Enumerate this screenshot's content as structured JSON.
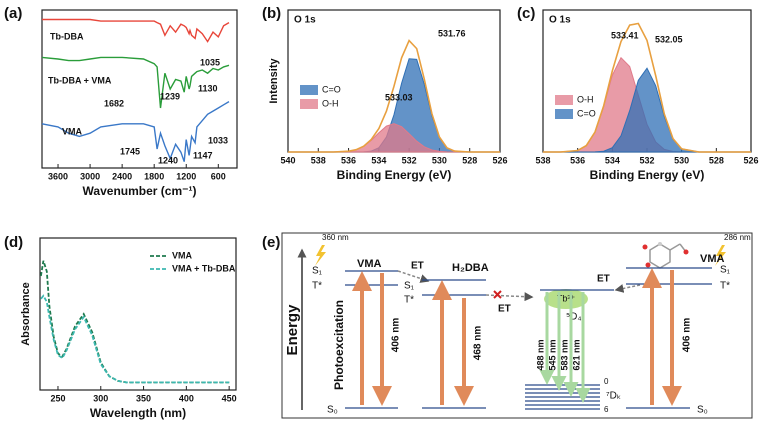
{
  "chart_data": [
    {
      "type": "line",
      "label": "(a)",
      "xlabel": "Wavenumber (cm⁻¹)",
      "xlim": [
        3900,
        250
      ],
      "ylim": [
        0,
        100
      ],
      "xticks": [
        3600,
        3000,
        2400,
        1800,
        1200,
        600
      ],
      "x": [
        3900,
        3600,
        3400,
        3200,
        3000,
        2800,
        2400,
        2000,
        1800,
        1745,
        1682,
        1600,
        1500,
        1400,
        1300,
        1239,
        1200,
        1147,
        1130,
        1100,
        1035,
        1000,
        900,
        800,
        700,
        600,
        500,
        400
      ],
      "series": [
        {
          "name": "Tb-DBA",
          "color": "#e8463a",
          "values": [
            94,
            94,
            94,
            94,
            94,
            93,
            93,
            93,
            93,
            92,
            91,
            84,
            90,
            86,
            91,
            90,
            89,
            85,
            87,
            84,
            82,
            88,
            85,
            80,
            86,
            83,
            90,
            92
          ]
        },
        {
          "name": "Tb-DBA + VMA",
          "color": "#2a9d3a",
          "values": [
            70,
            69,
            68,
            68,
            69,
            70,
            70,
            69,
            66,
            64,
            38,
            60,
            50,
            56,
            55,
            48,
            58,
            50,
            52,
            58,
            60,
            61,
            62,
            60,
            63,
            62,
            64,
            65
          ]
        },
        {
          "name": "VMA",
          "color": "#3a78c8",
          "values": [
            28,
            26,
            22,
            20,
            22,
            26,
            28,
            28,
            26,
            12,
            22,
            14,
            6,
            15,
            10,
            4,
            18,
            8,
            12,
            20,
            16,
            26,
            30,
            34,
            36,
            38,
            40,
            42
          ]
        }
      ],
      "annotations": [
        "1035",
        "1239",
        "1130",
        "1682",
        "1745",
        "1240",
        "1147",
        "1033"
      ]
    },
    {
      "type": "area",
      "label": "(b)",
      "title": "O 1s",
      "xlabel": "Binding Energy (eV)",
      "ylabel": "Intensity",
      "xlim": [
        540,
        526
      ],
      "ylim": [
        0,
        125
      ],
      "xticks": [
        540,
        538,
        536,
        534,
        532,
        530,
        528,
        526
      ],
      "x": [
        540,
        539,
        538,
        537,
        536,
        535.5,
        535,
        534.5,
        534,
        533.5,
        533,
        532.5,
        532,
        531.5,
        531,
        530.5,
        530,
        529.5,
        529,
        528,
        527,
        526
      ],
      "series": [
        {
          "name": "C=O",
          "color": "#2f6fb5",
          "values": [
            0,
            0,
            0,
            0,
            0,
            0,
            0.1,
            0.8,
            3.8,
            13.1,
            32.9,
            60.6,
            82,
            81.5,
            59.5,
            31.9,
            12.6,
            3.6,
            0.8,
            0,
            0,
            0
          ]
        },
        {
          "name": "O-H",
          "color": "#e07a8a",
          "values": [
            0,
            0,
            0,
            0,
            0.7,
            2.0,
            5.0,
            10.2,
            16.9,
            22.8,
            25,
            22.3,
            16.1,
            9.5,
            4.6,
            1.8,
            0.6,
            0.1,
            0,
            0,
            0,
            0
          ]
        }
      ],
      "envelope": {
        "color": "#e8a040",
        "values": [
          0,
          0,
          0,
          0,
          0.7,
          2.0,
          5.1,
          11.0,
          20.7,
          35.9,
          57.9,
          82.9,
          98.1,
          91.0,
          64.1,
          33.7,
          13.2,
          3.7,
          0.8,
          0,
          0,
          0
        ]
      },
      "annotations": [
        "531.76",
        "533.03"
      ]
    },
    {
      "type": "area",
      "label": "(c)",
      "title": "O 1s",
      "xlabel": "Binding Energy (eV)",
      "xlim": [
        538,
        526
      ],
      "ylim": [
        0,
        105
      ],
      "xticks": [
        538,
        536,
        534,
        532,
        530,
        528,
        526
      ],
      "x": [
        538,
        537,
        536,
        535.5,
        535,
        534.5,
        534,
        533.5,
        533,
        532.5,
        532,
        531.5,
        531,
        530.5,
        530,
        529,
        528,
        527,
        526
      ],
      "series": [
        {
          "name": "O-H",
          "color": "#e07a8a",
          "values": [
            0,
            0,
            1.1,
            4.7,
            14.7,
            33.6,
            56.7,
            69.7,
            63.2,
            42,
            20.5,
            7.4,
            1.9,
            0.4,
            0,
            0,
            0,
            0,
            0
          ]
        },
        {
          "name": "C=O",
          "color": "#2f6fb5",
          "values": [
            0,
            0,
            0,
            0,
            0.1,
            0.6,
            3.2,
            12.0,
            30.6,
            53,
            62,
            49,
            26.2,
            9.5,
            2.3,
            0,
            0,
            0,
            0
          ]
        }
      ],
      "envelope": {
        "color": "#e8a040",
        "values": [
          0,
          0,
          1.1,
          4.7,
          14.8,
          34.2,
          59.9,
          81.7,
          93.8,
          95,
          82.5,
          56.4,
          28.1,
          9.9,
          2.3,
          0,
          0,
          0,
          0
        ]
      },
      "annotations": [
        "533.41",
        "532.05"
      ]
    },
    {
      "type": "line",
      "label": "(d)",
      "xlabel": "Wavelength (nm)",
      "ylabel": "Absorbance",
      "xlim": [
        229,
        458
      ],
      "ylim": [
        0,
        100
      ],
      "xticks": [
        250,
        300,
        350,
        400,
        450
      ],
      "line_style": "dashed",
      "x": [
        230,
        233,
        237,
        240,
        245,
        250,
        255,
        260,
        270,
        280,
        290,
        300,
        310,
        320,
        330,
        350,
        400,
        450
      ],
      "series": [
        {
          "name": "VMA",
          "color": "#1e7a4e",
          "values": [
            75,
            85,
            78,
            55,
            35,
            24,
            22,
            27,
            42,
            50,
            38,
            18,
            9,
            6,
            5,
            5,
            5,
            5
          ]
        },
        {
          "name": "VMA + Tb-DBA",
          "color": "#3cb8b0",
          "values": [
            60,
            62,
            58,
            48,
            33,
            23,
            21,
            26,
            40,
            48,
            36,
            17,
            9,
            6,
            5,
            5,
            5,
            5
          ]
        }
      ]
    }
  ],
  "diagram": {
    "label": "(e)",
    "energy": "Energy",
    "photoexcitation": "Photoexcitation",
    "left": {
      "source": "360 nm",
      "name": "VMA",
      "s1": "S₁",
      "t": "T*",
      "s0": "S₀",
      "emission": "406 nm"
    },
    "et1": "ET",
    "et2": "ET",
    "et3": "ET",
    "ligand": {
      "name": "H₂DBA",
      "s1": "S₁",
      "t": "T*",
      "emission": "468 nm"
    },
    "ion": {
      "name": "Tb³⁺",
      "excited": "⁵D₄",
      "ground": "⁷Dₖ",
      "top": "0",
      "bottom": "6",
      "lines": [
        "488 nm",
        "545 nm",
        "583 nm",
        "621 nm"
      ]
    },
    "right": {
      "source": "286 nm",
      "name": "VMA",
      "s1": "S₁",
      "t": "T*",
      "s0": "S₀",
      "emission": "406 nm"
    }
  }
}
